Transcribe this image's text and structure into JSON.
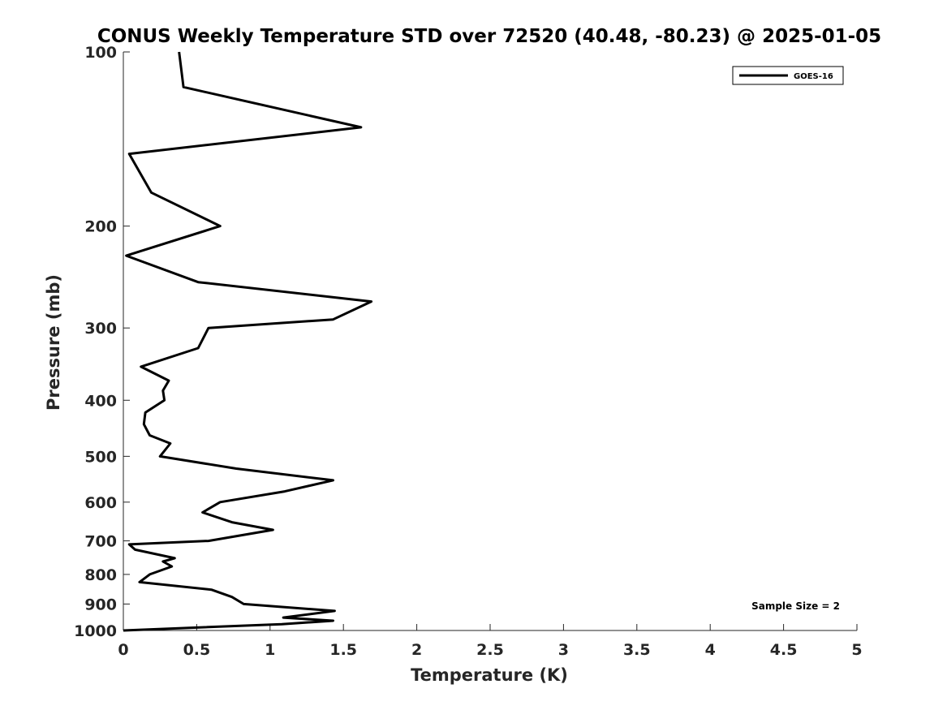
{
  "chart_data": {
    "type": "line",
    "title": "CONUS Weekly Temperature STD over 72520 (40.48, -80.23) @ 2025-01-05",
    "xlabel": "Temperature (K)",
    "ylabel": "Pressure (mb)",
    "xlim": [
      0,
      5
    ],
    "ylim": [
      100,
      1000
    ],
    "y_scale": "log",
    "y_reversed": true,
    "xticks": [
      0,
      0.5,
      1,
      1.5,
      2,
      2.5,
      3,
      3.5,
      4,
      4.5,
      5
    ],
    "xtick_labels": [
      "0",
      "0.5",
      "1",
      "1.5",
      "2",
      "2.5",
      "3",
      "3.5",
      "4",
      "4.5",
      "5"
    ],
    "yticks": [
      100,
      200,
      300,
      400,
      500,
      600,
      700,
      800,
      900,
      1000
    ],
    "ytick_labels": [
      "100",
      "200",
      "300",
      "400",
      "500",
      "600",
      "700",
      "800",
      "900",
      "1000"
    ],
    "grid": false,
    "legend_position": "top-right",
    "color": "#000000",
    "annotation": "Sample Size = 2",
    "series": [
      {
        "name": "GOES-16",
        "x": [
          0.38,
          0.41,
          1.62,
          0.04,
          0.19,
          0.66,
          0.02,
          0.51,
          1.69,
          1.43,
          0.58,
          0.51,
          0.12,
          0.31,
          0.27,
          0.28,
          0.15,
          0.14,
          0.18,
          0.32,
          0.25,
          0.77,
          1.43,
          1.1,
          0.66,
          0.54,
          0.74,
          1.02,
          0.58,
          0.04,
          0.08,
          0.35,
          0.27,
          0.33,
          0.18,
          0.11,
          0.6,
          0.74,
          0.82,
          1.44,
          1.09,
          1.43,
          1.08,
          0.0
        ],
        "y": [
          100,
          115,
          135,
          150,
          175,
          200,
          225,
          250,
          270,
          290,
          300,
          325,
          350,
          370,
          385,
          400,
          420,
          440,
          460,
          475,
          500,
          525,
          550,
          575,
          600,
          625,
          650,
          670,
          700,
          710,
          725,
          750,
          760,
          775,
          800,
          825,
          850,
          875,
          900,
          925,
          950,
          962,
          975,
          1000
        ]
      }
    ]
  }
}
